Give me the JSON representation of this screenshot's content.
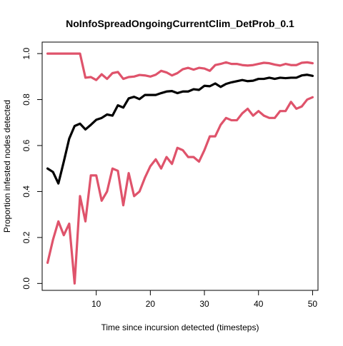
{
  "chart_data": {
    "type": "line",
    "title": "NoInfoSpreadOngoingCurrentClim_DetProb_0.1",
    "xlabel": "Time since incursion detected (timesteps)",
    "ylabel": "Proportion infested nodes detected",
    "xlim": [
      0,
      51
    ],
    "ylim": [
      -0.03,
      1.05
    ],
    "xticks": [
      10,
      20,
      30,
      40,
      50
    ],
    "yticks": [
      0.0,
      0.2,
      0.4,
      0.6,
      0.8,
      1.0
    ],
    "xtick_labels": [
      "10",
      "20",
      "30",
      "40",
      "50"
    ],
    "ytick_labels": [
      "0.0",
      "0.2",
      "0.4",
      "0.6",
      "0.8",
      "1.0"
    ],
    "grid": false,
    "legend": "none",
    "x": [
      1,
      2,
      3,
      4,
      5,
      6,
      7,
      8,
      9,
      10,
      11,
      12,
      13,
      14,
      15,
      16,
      17,
      18,
      19,
      20,
      21,
      22,
      23,
      24,
      25,
      26,
      27,
      28,
      29,
      30,
      31,
      32,
      33,
      34,
      35,
      36,
      37,
      38,
      39,
      40,
      41,
      42,
      43,
      44,
      45,
      46,
      47,
      48,
      49,
      50
    ],
    "series": [
      {
        "color": "#000000",
        "values": [
          0.5,
          0.485,
          0.435,
          0.53,
          0.63,
          0.685,
          0.695,
          0.67,
          0.69,
          0.712,
          0.72,
          0.735,
          0.73,
          0.775,
          0.765,
          0.805,
          0.812,
          0.802,
          0.82,
          0.82,
          0.82,
          0.828,
          0.835,
          0.837,
          0.828,
          0.835,
          0.835,
          0.845,
          0.842,
          0.86,
          0.858,
          0.87,
          0.855,
          0.868,
          0.875,
          0.88,
          0.885,
          0.88,
          0.882,
          0.89,
          0.89,
          0.895,
          0.89,
          0.895,
          0.893,
          0.895,
          0.895,
          0.905,
          0.908,
          0.903
        ]
      },
      {
        "color": "#DF536B",
        "values": [
          1.0,
          1.0,
          1.0,
          1.0,
          1.0,
          1.0,
          1.0,
          0.895,
          0.898,
          0.885,
          0.91,
          0.89,
          0.915,
          0.92,
          0.89,
          0.898,
          0.9,
          0.907,
          0.905,
          0.9,
          0.908,
          0.925,
          0.918,
          0.905,
          0.915,
          0.932,
          0.938,
          0.93,
          0.938,
          0.935,
          0.925,
          0.95,
          0.955,
          0.962,
          0.955,
          0.955,
          0.95,
          0.948,
          0.95,
          0.955,
          0.96,
          0.958,
          0.952,
          0.948,
          0.955,
          0.95,
          0.95,
          0.96,
          0.962,
          0.958
        ]
      },
      {
        "color": "#DF536B",
        "values": [
          0.09,
          0.19,
          0.27,
          0.21,
          0.26,
          0.0,
          0.38,
          0.27,
          0.47,
          0.47,
          0.36,
          0.4,
          0.5,
          0.49,
          0.34,
          0.48,
          0.38,
          0.4,
          0.46,
          0.51,
          0.54,
          0.5,
          0.55,
          0.52,
          0.59,
          0.58,
          0.55,
          0.55,
          0.53,
          0.58,
          0.64,
          0.64,
          0.69,
          0.72,
          0.71,
          0.71,
          0.74,
          0.76,
          0.73,
          0.75,
          0.73,
          0.72,
          0.72,
          0.75,
          0.75,
          0.79,
          0.76,
          0.77,
          0.8,
          0.81
        ]
      }
    ]
  }
}
